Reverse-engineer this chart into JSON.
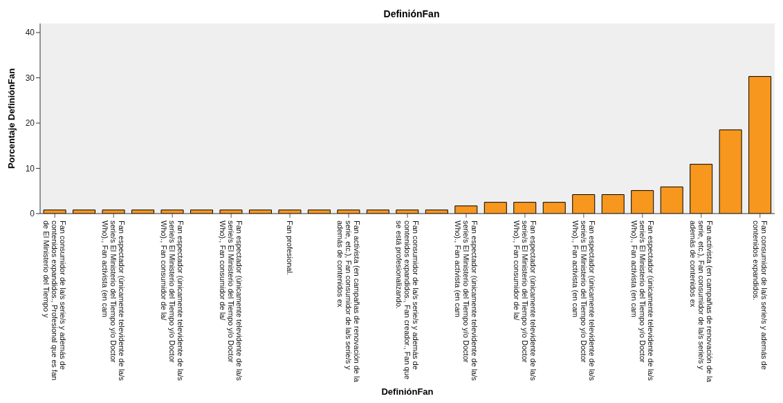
{
  "chart_data": {
    "type": "bar",
    "title": "DefiniónFan",
    "xlabel": "DefiniónFan",
    "ylabel": "Porcentaje DefiniónFan",
    "categories": [
      "Fan consumidor de la/s serie/s y además de contenidos expandidos., Profesional que es fan de El Ministerio del Tiempo y",
      null,
      "Fan espectador (únicamente televidente de la/s serie/s El Ministerio del Tiempo y/o Doctor Who)., Fan activista (en cam",
      null,
      "Fan espectador (únicamente televidente de la/s serie/s El Ministerio del Tiempo y/o Doctor Who)., Fan consumidor de la/",
      null,
      "Fan espectador (únicamente televidente de la/s serie/s El Ministerio del Tiempo y/o Doctor Who)., Fan consumidor de la/",
      null,
      "Fan profesional.",
      null,
      "Fan activista (en campañas de renovación de la serie, etc.), Fan consumidor de la/s serie/s y además de contenidos ex",
      null,
      "Fan consumidor de la/s serie/s y además de contenidos expandidos., Fan creador., Fan que se está profesionalizando.",
      null,
      "Fan espectador (únicamente televidente de la/s serie/s El Ministerio del Tiempo y/o Doctor Who)., Fan activista (en cam",
      null,
      "Fan espectador (únicamente televidente de la/s serie/s El Ministerio del Tiempo y/o Doctor Who)., Fan consumidor de la/",
      null,
      "Fan espectador (únicamente televidente de la/s serie/s El Ministerio del Tiempo y/o Doctor Who)., Fan activista (en cam",
      null,
      "Fan espectador (únicamente televidente de la/s serie/s El Ministerio del Tiempo y/o Doctor Who)., Fan activista (en cam",
      null,
      "Fan activista (en campañas de renovación de la serie, etc.), Fan consumidor de la/s serie/s y además de contenidos ex",
      null,
      "Fan consumidor de la/s serie/s y además de contenidos expandidos."
    ],
    "values": [
      0.8,
      0.8,
      0.8,
      0.8,
      0.8,
      0.8,
      0.8,
      0.8,
      0.8,
      0.8,
      0.8,
      0.8,
      0.8,
      0.8,
      1.7,
      2.5,
      2.5,
      2.5,
      4.2,
      4.2,
      5.1,
      5.9,
      10.9,
      18.5,
      30.3
    ],
    "color": "#f7971e",
    "ylim": [
      0,
      42
    ],
    "yticks": [
      0,
      10,
      20,
      30,
      40
    ],
    "grid": false
  }
}
